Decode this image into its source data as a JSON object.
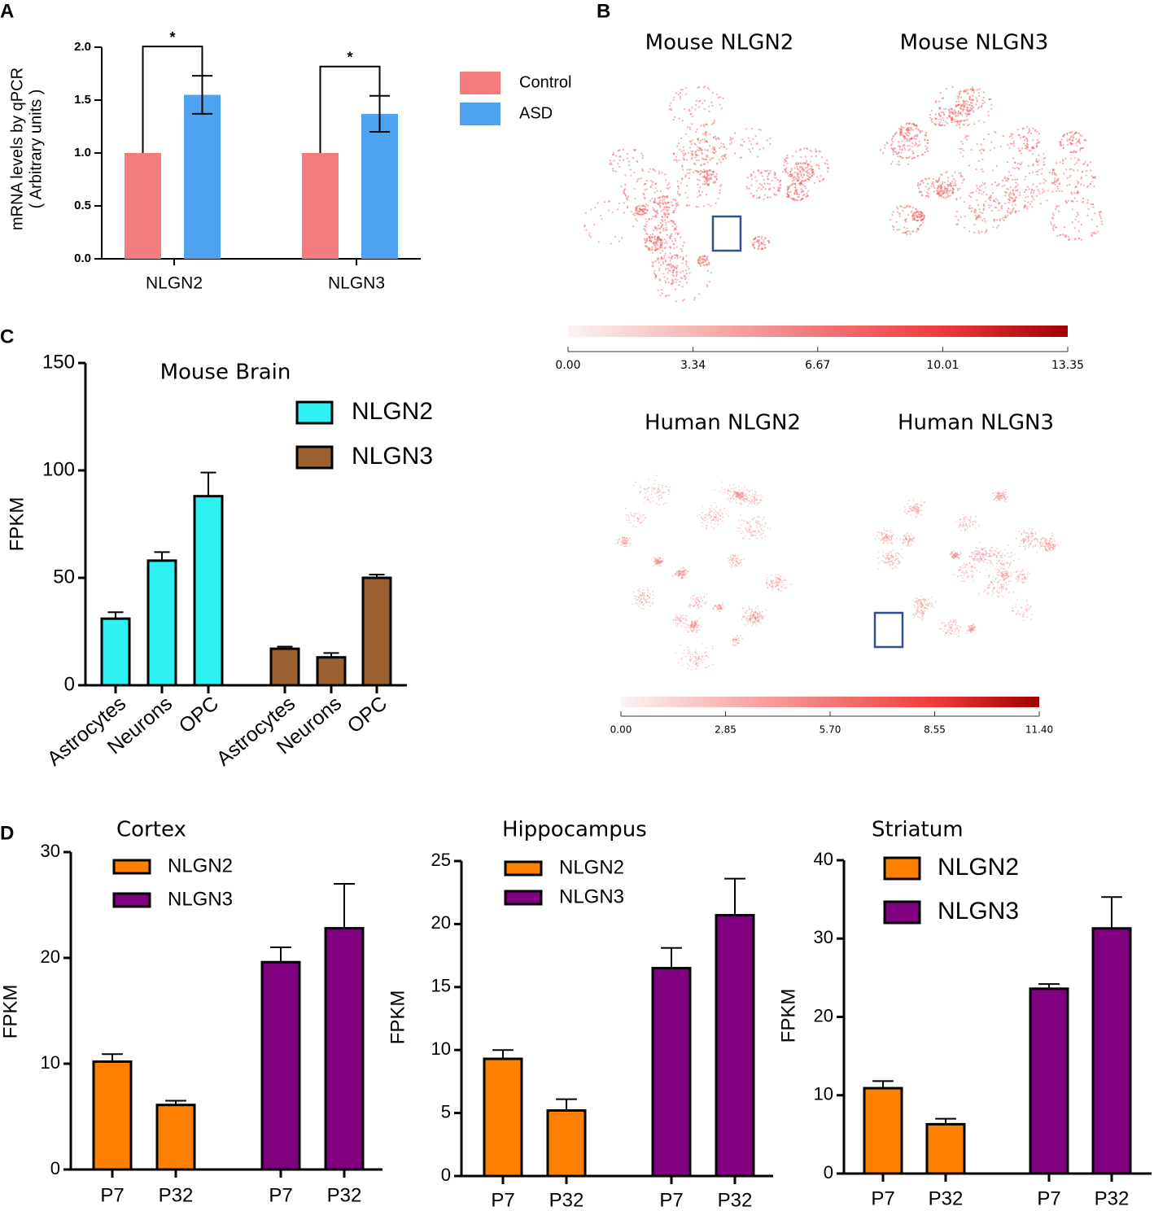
{
  "chart_data": [
    {
      "type": "bar",
      "panel": "A",
      "ylabel": [
        "mRNA levels by qPCR",
        "( Arbitrary units )"
      ],
      "categories": [
        "NLGN2",
        "NLGN3"
      ],
      "series": [
        {
          "name": "Control",
          "color": "#f47c7c",
          "values": [
            1.0,
            1.0
          ]
        },
        {
          "name": "ASD",
          "color": "#4da3f0",
          "values": [
            1.55,
            1.37
          ],
          "errors": [
            0.18,
            0.17
          ]
        }
      ],
      "annotations": [
        "*",
        "*"
      ],
      "ylim": [
        0,
        2
      ],
      "yticks": [
        {
          "value": 0,
          "label": "0.0"
        },
        0.5,
        {
          "value": 1,
          "label": "1.0"
        },
        1.5,
        {
          "value": 2,
          "label": "2.0"
        }
      ]
    },
    {
      "type": "embedding",
      "panel": "B",
      "titles": [
        "Mouse NLGN2",
        "Mouse NLGN3",
        "Human NLGN2",
        "Human NLGN3"
      ],
      "colorbars": [
        {
          "lim": [
            0,
            13.35
          ],
          "ticks": [
            {
              "value": 0,
              "label": "0.00"
            },
            3.34,
            6.67,
            10.01,
            13.35
          ]
        },
        {
          "lim": [
            0,
            11.4
          ],
          "ticks": [
            {
              "value": 0,
              "label": "0.00"
            },
            2.85,
            {
              "value": 5.7,
              "label": "5.70"
            },
            8.55,
            {
              "value": 11.4,
              "label": "11.40"
            }
          ]
        }
      ]
    },
    {
      "type": "bar",
      "panel": "C",
      "title": "Mouse Brain",
      "ylabel": "FPKM",
      "categories": [
        "Astrocytes",
        "Neurons",
        "OPC"
      ],
      "series": [
        {
          "name": "NLGN2",
          "color": "#2ef2f2",
          "values": [
            31,
            58,
            88
          ],
          "errors": [
            3,
            4,
            11
          ]
        },
        {
          "name": "NLGN3",
          "color": "#9b6130",
          "values": [
            17,
            13,
            50
          ],
          "errors": [
            1,
            2,
            1.5
          ]
        }
      ],
      "ylim": [
        0,
        150
      ],
      "yticks": [
        0,
        50,
        100,
        150
      ]
    },
    {
      "type": "bar",
      "panel": "D",
      "title": "Cortex",
      "ylabel": "FPKM",
      "categories": [
        "P7",
        "P32"
      ],
      "series": [
        {
          "name": "NLGN2",
          "color": "#ff8000",
          "values": [
            10.2,
            6.1
          ],
          "errors": [
            0.7,
            0.4
          ]
        },
        {
          "name": "NLGN3",
          "color": "#800080",
          "values": [
            19.6,
            22.8
          ],
          "errors": [
            1.4,
            4.2
          ]
        }
      ],
      "ylim": [
        0,
        30
      ],
      "yticks": [
        0,
        10,
        20,
        30
      ]
    },
    {
      "type": "bar",
      "title": "Hippocampus",
      "ylabel": "FPKM",
      "categories": [
        "P7",
        "P32"
      ],
      "series": [
        {
          "name": "NLGN2",
          "color": "#ff8000",
          "values": [
            9.3,
            5.2
          ],
          "errors": [
            0.7,
            0.9
          ]
        },
        {
          "name": "NLGN3",
          "color": "#800080",
          "values": [
            16.5,
            20.7
          ],
          "errors": [
            1.6,
            2.9
          ]
        }
      ],
      "ylim": [
        0,
        25
      ],
      "yticks": [
        0,
        5,
        10,
        15,
        20,
        25
      ]
    },
    {
      "type": "bar",
      "title": "Striatum",
      "ylabel": "FPKM",
      "categories": [
        "P7",
        "P32"
      ],
      "series": [
        {
          "name": "NLGN2",
          "color": "#ff8000",
          "values": [
            10.9,
            6.3
          ],
          "errors": [
            0.9,
            0.7
          ]
        },
        {
          "name": "NLGN3",
          "color": "#800080",
          "values": [
            23.6,
            31.3
          ],
          "errors": [
            0.6,
            4.0
          ]
        }
      ],
      "ylim": [
        0,
        40
      ],
      "yticks": [
        0,
        10,
        20,
        30,
        40
      ]
    }
  ]
}
